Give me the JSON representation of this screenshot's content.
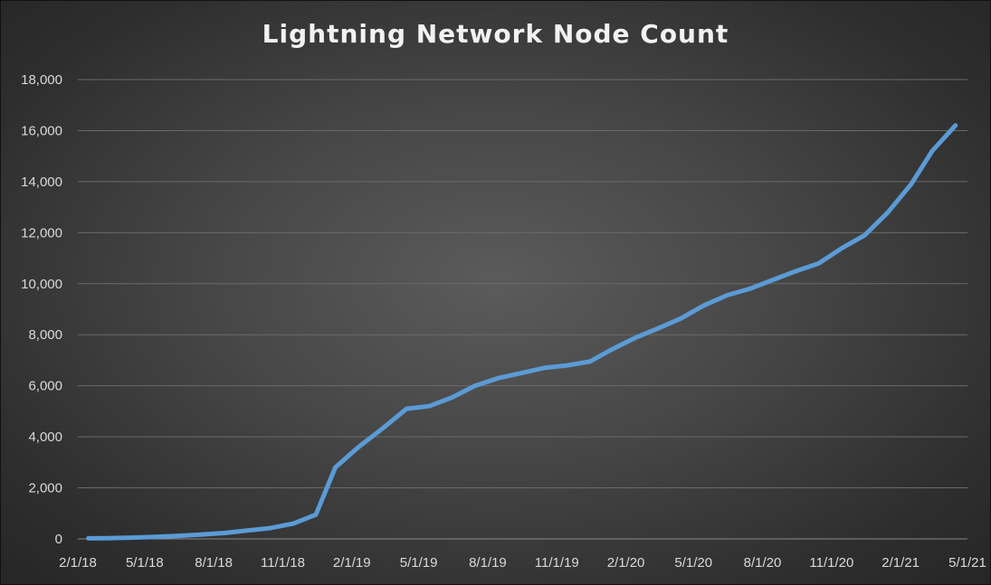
{
  "chart_data": {
    "type": "line",
    "title": "Lightning Network Node Count",
    "xlabel": "",
    "ylabel": "",
    "ylim": [
      0,
      18000
    ],
    "y_ticks": [
      0,
      2000,
      4000,
      6000,
      8000,
      10000,
      12000,
      14000,
      16000,
      18000
    ],
    "y_tick_labels": [
      "0",
      "2,000",
      "4,000",
      "6,000",
      "8,000",
      "10,000",
      "12,000",
      "14,000",
      "16,000",
      "18,000"
    ],
    "x_ticks": [
      "2018-02-01",
      "2018-05-01",
      "2018-08-01",
      "2018-11-01",
      "2019-02-01",
      "2019-05-01",
      "2019-08-01",
      "2019-11-01",
      "2020-02-01",
      "2020-05-01",
      "2020-08-01",
      "2020-11-01",
      "2021-02-01",
      "2021-05-01"
    ],
    "x_tick_labels": [
      "2/1/18",
      "5/1/18",
      "8/1/18",
      "11/1/18",
      "2/1/19",
      "5/1/19",
      "8/1/19",
      "11/1/19",
      "2/1/20",
      "5/1/20",
      "8/1/20",
      "11/1/20",
      "2/1/21",
      "5/1/21"
    ],
    "x_range": [
      "2018-02-01",
      "2021-05-01"
    ],
    "grid": "horizontal",
    "series": [
      {
        "color": "#5b9bd5",
        "points": [
          [
            "2018-02-15",
            20
          ],
          [
            "2018-03-15",
            30
          ],
          [
            "2018-04-15",
            50
          ],
          [
            "2018-05-15",
            80
          ],
          [
            "2018-06-15",
            120
          ],
          [
            "2018-07-15",
            170
          ],
          [
            "2018-08-15",
            230
          ],
          [
            "2018-09-15",
            330
          ],
          [
            "2018-10-15",
            420
          ],
          [
            "2018-11-15",
            600
          ],
          [
            "2018-12-15",
            950
          ],
          [
            "2019-01-10",
            2800
          ],
          [
            "2019-02-10",
            3600
          ],
          [
            "2019-03-15",
            4350
          ],
          [
            "2019-04-15",
            5100
          ],
          [
            "2019-05-15",
            5200
          ],
          [
            "2019-06-15",
            5550
          ],
          [
            "2019-07-15",
            6000
          ],
          [
            "2019-08-15",
            6300
          ],
          [
            "2019-09-15",
            6500
          ],
          [
            "2019-10-15",
            6700
          ],
          [
            "2019-11-15",
            6800
          ],
          [
            "2019-12-15",
            6950
          ],
          [
            "2020-01-15",
            7450
          ],
          [
            "2020-02-15",
            7900
          ],
          [
            "2020-03-15",
            8250
          ],
          [
            "2020-04-15",
            8650
          ],
          [
            "2020-05-15",
            9150
          ],
          [
            "2020-06-15",
            9550
          ],
          [
            "2020-07-15",
            9800
          ],
          [
            "2020-08-15",
            10150
          ],
          [
            "2020-09-15",
            10500
          ],
          [
            "2020-10-15",
            10800
          ],
          [
            "2020-11-15",
            11400
          ],
          [
            "2020-12-15",
            11900
          ],
          [
            "2021-01-15",
            12800
          ],
          [
            "2021-02-15",
            13900
          ],
          [
            "2021-03-15",
            15200
          ],
          [
            "2021-04-15",
            16200
          ]
        ]
      }
    ]
  }
}
